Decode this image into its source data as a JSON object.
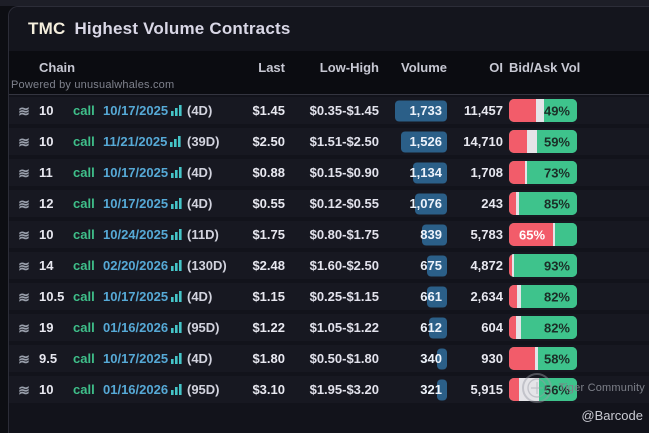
{
  "header": {
    "ticker": "TMC",
    "title": "Highest Volume Contracts"
  },
  "powered_by": "Powered by unusualwhales.com",
  "columns": {
    "chain": "Chain",
    "last": "Last",
    "low_high": "Low-High",
    "volume": "Volume",
    "oi": "OI",
    "bid_ask": "Bid/Ask Vol"
  },
  "colors": {
    "panel_bg": "#12131b",
    "row_bg": "#171821",
    "call_green": "#3fbf8a",
    "date_blue": "#56a9d6",
    "volume_badge_blue": "#2b5f88",
    "bid_red": "#f25c6a",
    "ask_green": "#3ec38c",
    "mid_neutral": "#e4e4e8"
  },
  "max_volume": 1733,
  "rows": [
    {
      "strike": "10",
      "side": "call",
      "expiry": "10/17/2025",
      "dte": "(4D)",
      "last": "$1.45",
      "range": "$0.35-$1.45",
      "volume": "1,733",
      "volume_num": 1733,
      "oi": "11,457",
      "bid_pct": 40,
      "mid_pct": 11,
      "ask_pct": 49,
      "label": "49%",
      "label_side": "ask"
    },
    {
      "strike": "10",
      "side": "call",
      "expiry": "11/21/2025",
      "dte": "(39D)",
      "last": "$2.50",
      "range": "$1.51-$2.50",
      "volume": "1,526",
      "volume_num": 1526,
      "oi": "14,710",
      "bid_pct": 27,
      "mid_pct": 14,
      "ask_pct": 59,
      "label": "59%",
      "label_side": "ask"
    },
    {
      "strike": "11",
      "side": "call",
      "expiry": "10/17/2025",
      "dte": "(4D)",
      "last": "$0.88",
      "range": "$0.15-$0.90",
      "volume": "1,134",
      "volume_num": 1134,
      "oi": "1,708",
      "bid_pct": 23,
      "mid_pct": 4,
      "ask_pct": 73,
      "label": "73%",
      "label_side": "ask"
    },
    {
      "strike": "12",
      "side": "call",
      "expiry": "10/17/2025",
      "dte": "(4D)",
      "last": "$0.55",
      "range": "$0.12-$0.55",
      "volume": "1,076",
      "volume_num": 1076,
      "oi": "243",
      "bid_pct": 11,
      "mid_pct": 4,
      "ask_pct": 85,
      "label": "85%",
      "label_side": "ask"
    },
    {
      "strike": "10",
      "side": "call",
      "expiry": "10/24/2025",
      "dte": "(11D)",
      "last": "$1.75",
      "range": "$0.80-$1.75",
      "volume": "839",
      "volume_num": 839,
      "oi": "5,783",
      "bid_pct": 65,
      "mid_pct": 3,
      "ask_pct": 32,
      "label": "65%",
      "label_side": "bid"
    },
    {
      "strike": "14",
      "side": "call",
      "expiry": "02/20/2026",
      "dte": "(130D)",
      "last": "$2.48",
      "range": "$1.60-$2.50",
      "volume": "675",
      "volume_num": 675,
      "oi": "4,872",
      "bid_pct": 4,
      "mid_pct": 3,
      "ask_pct": 93,
      "label": "93%",
      "label_side": "ask"
    },
    {
      "strike": "10.5",
      "side": "call",
      "expiry": "10/17/2025",
      "dte": "(4D)",
      "last": "$1.15",
      "range": "$0.25-$1.15",
      "volume": "661",
      "volume_num": 661,
      "oi": "2,634",
      "bid_pct": 12,
      "mid_pct": 6,
      "ask_pct": 82,
      "label": "82%",
      "label_side": "ask"
    },
    {
      "strike": "19",
      "side": "call",
      "expiry": "01/16/2026",
      "dte": "(95D)",
      "last": "$1.22",
      "range": "$1.05-$1.22",
      "volume": "612",
      "volume_num": 612,
      "oi": "604",
      "bid_pct": 10,
      "mid_pct": 8,
      "ask_pct": 82,
      "label": "82%",
      "label_side": "ask"
    },
    {
      "strike": "9.5",
      "side": "call",
      "expiry": "10/17/2025",
      "dte": "(4D)",
      "last": "$1.80",
      "range": "$0.50-$1.80",
      "volume": "340",
      "volume_num": 340,
      "oi": "930",
      "bid_pct": 38,
      "mid_pct": 4,
      "ask_pct": 58,
      "label": "58%",
      "label_side": "ask"
    },
    {
      "strike": "10",
      "side": "call",
      "expiry": "01/16/2026",
      "dte": "(95D)",
      "last": "$3.10",
      "range": "$1.95-$3.20",
      "volume": "321",
      "volume_num": 321,
      "oi": "5,915",
      "bid_pct": 14,
      "mid_pct": 30,
      "ask_pct": 56,
      "label": "56%",
      "label_side": "ask"
    }
  ],
  "watermark": {
    "community": "Tiger Community",
    "handle": "@Barcode"
  }
}
